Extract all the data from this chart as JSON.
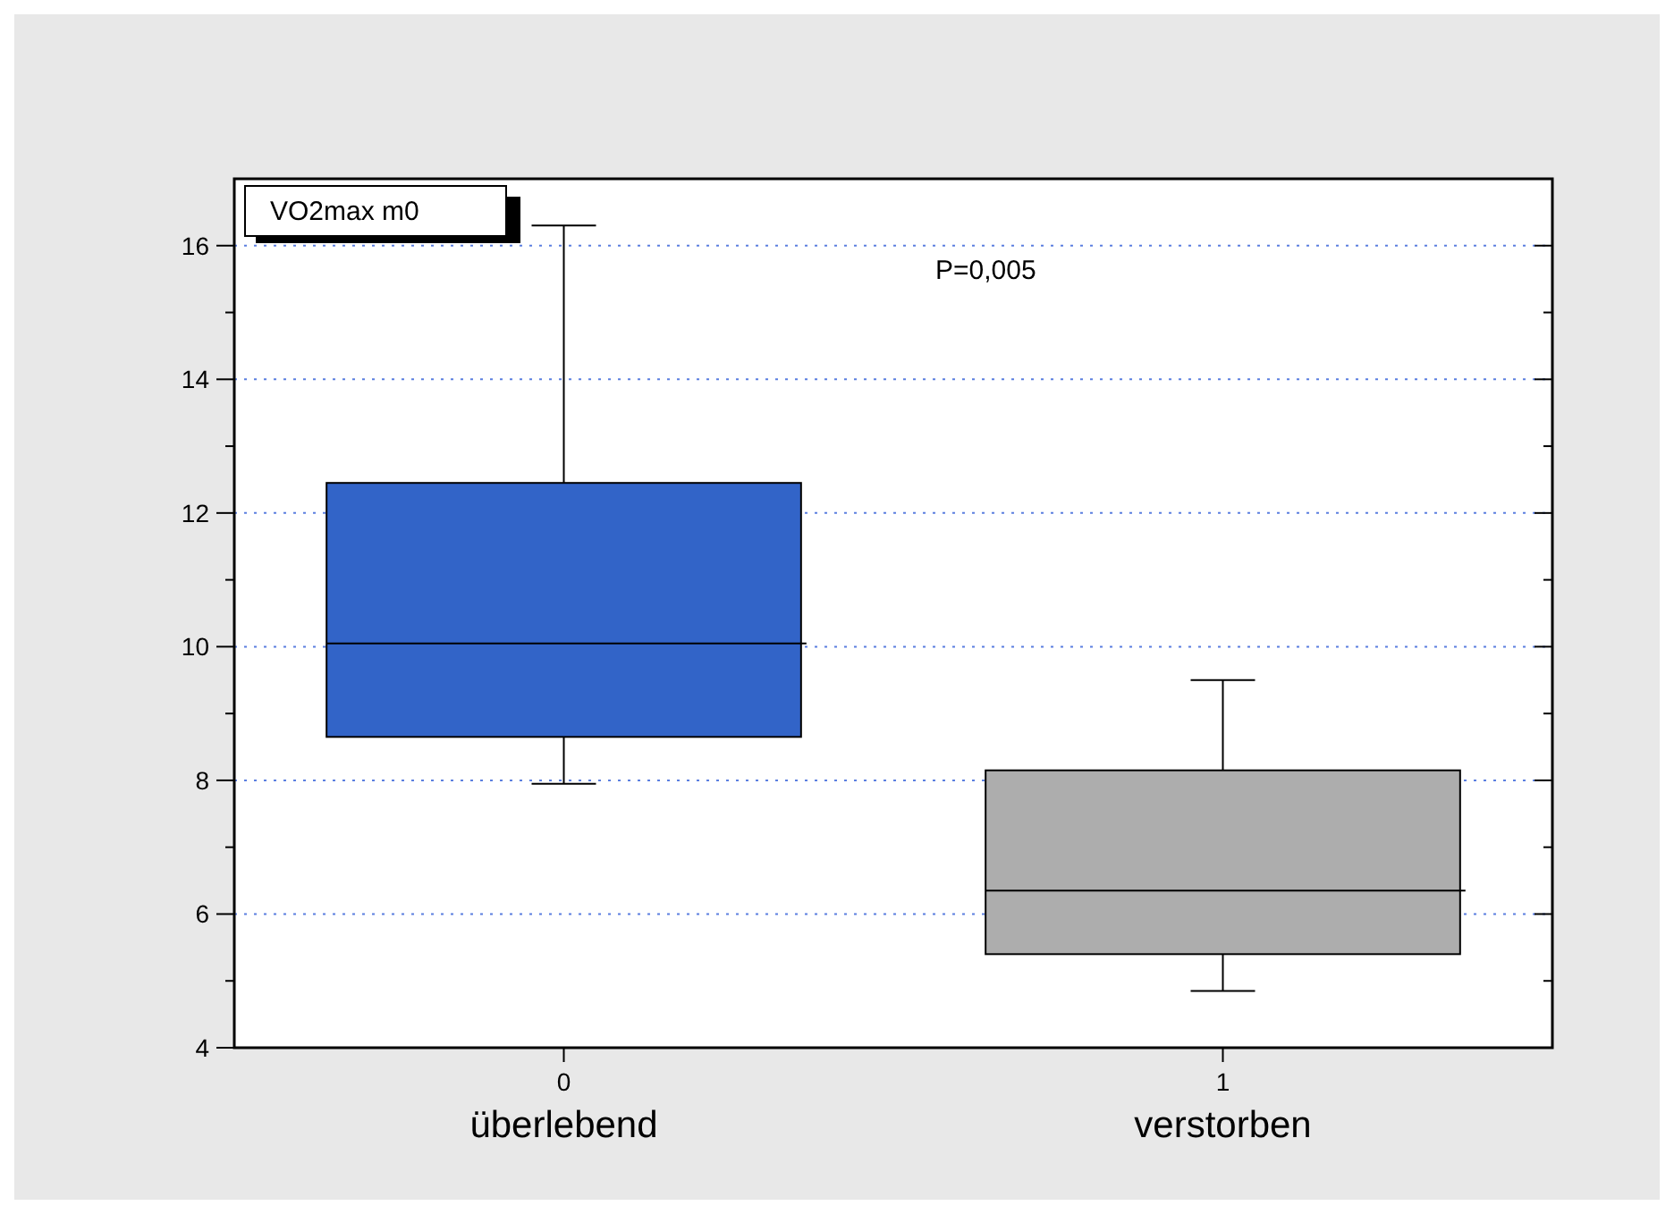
{
  "chart_data": {
    "type": "box",
    "categories": [
      "0\nüberlebend",
      "1\nverstorben"
    ],
    "series": [
      {
        "name": "VO2max m0",
        "colors": [
          "#3264c8",
          "#adadad"
        ],
        "boxes": [
          {
            "low": 7.95,
            "q1": 8.65,
            "median": 10.05,
            "q3": 12.45,
            "high": 16.3
          },
          {
            "low": 4.85,
            "q1": 5.4,
            "median": 6.35,
            "q3": 8.15,
            "high": 9.5
          }
        ]
      }
    ],
    "ylim": [
      4,
      17
    ],
    "yticks": [
      4,
      {
        "value": 5,
        "label": null
      },
      6,
      {
        "value": 7,
        "label": null
      },
      8,
      {
        "value": 9,
        "label": null
      },
      10,
      {
        "value": 11,
        "label": null
      },
      12,
      {
        "value": 13,
        "label": null
      },
      14,
      {
        "value": 15,
        "label": null
      },
      16
    ],
    "grid": "y",
    "legend": "top left",
    "annotations": [
      "P=0,005"
    ]
  }
}
